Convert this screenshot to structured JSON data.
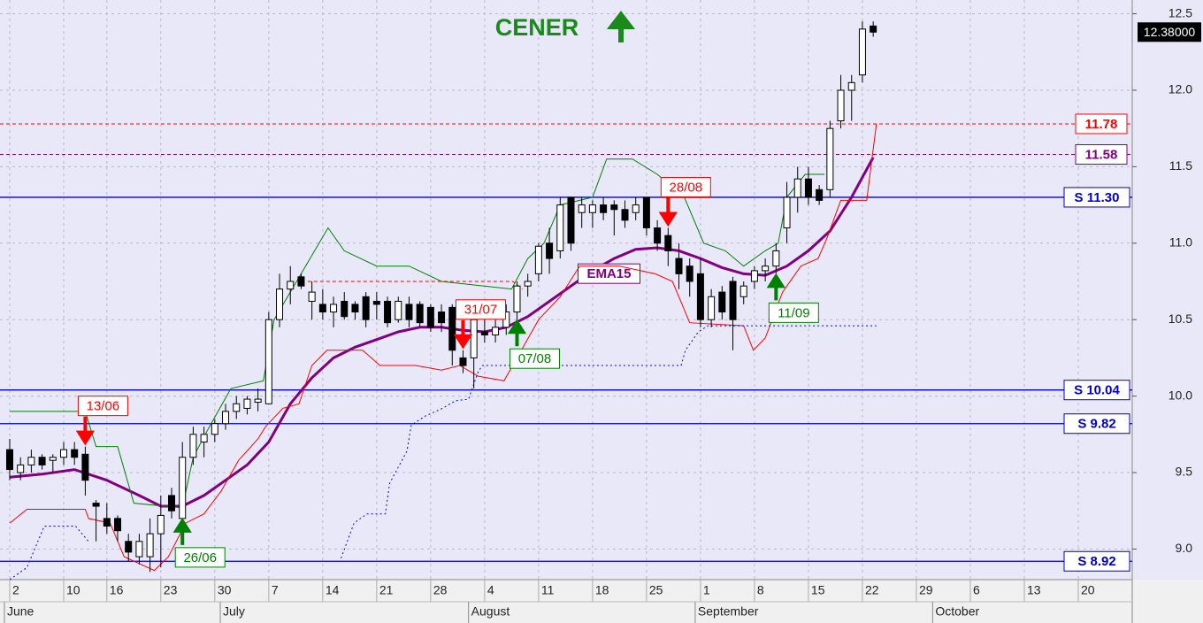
{
  "chart_data": {
    "type": "candlestick",
    "title": "CENER",
    "xlim": [
      -0.9,
      104
    ],
    "ylim": [
      8.8,
      12.59
    ],
    "yticks": [
      {
        "value": 9,
        "label": "9.0"
      },
      9.5,
      {
        "value": 10,
        "label": "10.0"
      },
      10.5,
      {
        "value": 11,
        "label": "11.0"
      },
      11.5,
      {
        "value": 12,
        "label": "12.0"
      },
      12.5
    ],
    "xticks": [
      {
        "value": 0,
        "label": "2"
      },
      {
        "value": 5,
        "label": "10"
      },
      {
        "value": 9,
        "label": "16"
      },
      {
        "value": 14,
        "label": "23"
      },
      {
        "value": 19,
        "label": "30"
      },
      {
        "value": 24,
        "label": "7"
      },
      {
        "value": 29,
        "label": "14"
      },
      {
        "value": 34,
        "label": "21"
      },
      {
        "value": 39,
        "label": "28"
      },
      {
        "value": 44,
        "label": "4"
      },
      {
        "value": 49,
        "label": "11"
      },
      {
        "value": 54,
        "label": "18"
      },
      {
        "value": 59,
        "label": "25"
      },
      {
        "value": 64,
        "label": "1"
      },
      {
        "value": 69,
        "label": "8"
      },
      {
        "value": 74,
        "label": "15"
      },
      {
        "value": 79,
        "label": "22"
      },
      {
        "value": 84,
        "label": "29"
      },
      {
        "value": 89,
        "label": "6"
      },
      {
        "value": 94,
        "label": "13"
      },
      {
        "value": 99,
        "label": "20"
      }
    ],
    "months": [
      {
        "value": 0,
        "label": "June"
      },
      {
        "value": 20,
        "label": "July"
      },
      {
        "value": 43,
        "label": "August"
      },
      {
        "value": 64,
        "label": "September"
      },
      {
        "value": 86,
        "label": "October"
      }
    ],
    "grid": true,
    "candles": {
      "open": [
        9.65,
        9.5,
        9.55,
        9.6,
        9.58,
        9.6,
        9.65,
        9.62,
        9.3,
        9.2,
        9.2,
        9.05,
        8.95,
        8.95,
        9.1,
        9.35,
        9.2,
        9.6,
        9.7,
        9.75,
        9.82,
        9.9,
        9.92,
        9.96,
        9.95,
        10.5,
        10.7,
        10.78,
        10.62,
        10.6,
        10.55,
        10.62,
        10.6,
        10.65,
        10.62,
        10.62,
        10.5,
        10.6,
        10.6,
        10.58,
        10.55,
        10.58,
        10.25,
        10.25,
        10.42,
        10.4,
        10.45,
        10.55,
        10.72,
        10.8,
        11.0,
        10.95,
        11.3,
        11.2,
        11.2,
        11.25,
        11.25,
        11.22,
        11.2,
        11.3,
        11.1,
        11.05,
        10.9,
        10.85,
        10.8,
        10.5,
        10.68,
        10.75,
        10.65,
        10.75,
        10.82,
        10.85,
        11.1,
        11.3,
        11.42,
        11.35,
        11.35,
        11.8,
        12.0,
        12.1,
        12.42
      ],
      "high": [
        9.72,
        9.6,
        9.65,
        9.62,
        9.62,
        9.7,
        9.7,
        9.67,
        9.32,
        9.3,
        9.22,
        9.1,
        9.1,
        9.2,
        9.35,
        9.4,
        9.7,
        9.8,
        9.8,
        9.85,
        9.95,
        10.0,
        10.0,
        10.05,
        10.55,
        10.8,
        10.85,
        10.8,
        10.75,
        10.7,
        10.65,
        10.68,
        10.62,
        10.68,
        10.68,
        10.65,
        10.65,
        10.65,
        10.62,
        10.6,
        10.6,
        10.6,
        10.3,
        10.55,
        10.55,
        10.5,
        10.6,
        10.75,
        10.8,
        11.0,
        11.1,
        11.3,
        11.3,
        11.3,
        11.28,
        11.3,
        11.28,
        11.28,
        11.3,
        11.3,
        11.15,
        11.1,
        11.0,
        10.9,
        10.9,
        10.7,
        10.72,
        10.78,
        10.75,
        10.85,
        10.9,
        11.0,
        11.4,
        11.5,
        11.5,
        11.38,
        11.8,
        12.1,
        12.1,
        12.45,
        12.45
      ],
      "low": [
        9.45,
        9.45,
        9.5,
        9.52,
        9.5,
        9.55,
        9.55,
        9.35,
        9.05,
        9.1,
        9.05,
        8.92,
        8.9,
        8.85,
        8.88,
        9.2,
        9.2,
        9.55,
        9.6,
        9.7,
        9.78,
        9.85,
        9.88,
        9.9,
        9.95,
        10.45,
        10.6,
        10.7,
        10.5,
        10.5,
        10.45,
        10.5,
        10.5,
        10.45,
        10.5,
        10.45,
        10.48,
        10.45,
        10.45,
        10.42,
        10.42,
        10.2,
        10.15,
        10.05,
        10.35,
        10.35,
        10.4,
        10.5,
        10.65,
        10.75,
        10.8,
        10.9,
        10.95,
        11.1,
        11.1,
        11.15,
        11.05,
        11.1,
        11.15,
        11.05,
        10.95,
        10.85,
        10.7,
        10.65,
        10.45,
        10.45,
        10.5,
        10.3,
        10.6,
        10.7,
        10.75,
        10.8,
        11.0,
        11.2,
        11.25,
        11.25,
        11.3,
        11.75,
        11.8,
        12.05,
        12.35
      ],
      "close": [
        9.52,
        9.55,
        9.6,
        9.55,
        9.6,
        9.65,
        9.6,
        9.45,
        9.28,
        9.15,
        9.12,
        8.98,
        9.05,
        9.1,
        9.22,
        9.25,
        9.6,
        9.75,
        9.75,
        9.82,
        9.9,
        9.95,
        9.98,
        9.98,
        10.5,
        10.7,
        10.75,
        10.72,
        10.68,
        10.55,
        10.6,
        10.52,
        10.55,
        10.5,
        10.6,
        10.48,
        10.62,
        10.5,
        10.48,
        10.45,
        10.48,
        10.3,
        10.2,
        10.5,
        10.4,
        10.45,
        10.55,
        10.72,
        10.75,
        10.98,
        10.9,
        11.25,
        11.0,
        11.25,
        11.25,
        11.2,
        11.22,
        11.15,
        11.25,
        11.1,
        11.0,
        10.95,
        10.8,
        10.75,
        10.5,
        10.65,
        10.55,
        10.5,
        10.72,
        10.82,
        10.85,
        10.95,
        11.3,
        11.42,
        11.3,
        11.28,
        11.75,
        12.0,
        12.05,
        12.4,
        12.38
      ]
    },
    "series": [
      {
        "name": "EMA15",
        "color": "#800080",
        "width": 3,
        "style": "solid",
        "x": [
          0,
          3,
          6,
          9,
          12,
          14,
          16,
          18,
          20,
          22,
          24,
          26,
          28,
          30,
          32,
          34,
          36,
          38,
          40,
          42,
          44,
          46,
          48,
          50,
          52,
          54,
          56,
          58,
          60,
          62,
          64,
          66,
          68,
          70,
          72,
          74,
          76,
          78,
          80
        ],
        "values": [
          9.47,
          9.49,
          9.52,
          9.45,
          9.35,
          9.28,
          9.28,
          9.35,
          9.45,
          9.55,
          9.7,
          9.95,
          10.12,
          10.25,
          10.32,
          10.37,
          10.42,
          10.45,
          10.45,
          10.43,
          10.42,
          10.45,
          10.52,
          10.62,
          10.72,
          10.82,
          10.9,
          10.96,
          10.97,
          10.95,
          10.9,
          10.84,
          10.8,
          10.79,
          10.85,
          10.95,
          11.08,
          11.3,
          11.56
        ]
      },
      {
        "color": "#008000",
        "width": 1,
        "style": "solid",
        "x": [
          0,
          7,
          8,
          10,
          11.5,
          16,
          17,
          18.5,
          20.5,
          23.5,
          24.5,
          27,
          29.5,
          31,
          34,
          37,
          40,
          46.5,
          48,
          49.5,
          51,
          54,
          55.3,
          57.7,
          60,
          62.5,
          64.3,
          66.3,
          68,
          70,
          71.2,
          72,
          73.7,
          75.5
        ],
        "values": [
          9.9,
          9.9,
          9.67,
          9.67,
          9.3,
          9.27,
          9.6,
          9.8,
          10.05,
          10.1,
          10.5,
          10.8,
          11.1,
          10.95,
          10.85,
          10.85,
          10.75,
          10.7,
          10.9,
          11.0,
          11.25,
          11.3,
          11.55,
          11.55,
          11.45,
          11.3,
          11.0,
          10.95,
          10.85,
          10.95,
          11.0,
          11.3,
          11.45,
          11.45
        ]
      },
      {
        "color": "#ff0000",
        "width": 1,
        "style": "solid",
        "x": [
          0,
          1.6,
          7,
          7.3,
          9.3,
          10.6,
          13.4,
          14.7,
          16.3,
          18,
          19.6,
          21.2,
          23,
          23.7,
          25.3,
          26.8,
          28,
          29.4,
          32.7,
          34.3,
          37.6,
          40,
          41.7,
          43.4,
          45.8,
          47.4,
          49,
          51,
          52.8,
          56.5,
          59.8,
          61.4,
          63,
          68,
          68.9,
          70,
          71.6,
          73.3,
          74.9,
          75.7,
          77,
          79.4,
          80.3
        ],
        "values": [
          9.17,
          9.26,
          9.26,
          9.2,
          9.17,
          8.95,
          8.86,
          8.95,
          9.17,
          9.23,
          9.38,
          9.58,
          9.72,
          9.8,
          9.92,
          9.95,
          10.2,
          10.3,
          10.3,
          10.2,
          10.2,
          10.17,
          10.2,
          10.13,
          10.1,
          10.3,
          10.5,
          10.65,
          10.85,
          10.85,
          10.8,
          10.75,
          10.48,
          10.46,
          10.3,
          10.38,
          10.68,
          10.85,
          10.9,
          11.03,
          11.28,
          11.28,
          11.78
        ]
      },
      {
        "color": "#0000ff",
        "width": 1,
        "style": "dotted",
        "x": [
          0,
          1.6,
          3.2,
          6.1,
          7.3,
          8,
          30.7,
          31.9,
          33.1,
          34.8,
          35.2,
          36.8,
          37.2,
          38.5,
          40.1,
          41.3,
          42.5,
          43.4,
          43.8,
          45,
          62.2,
          62.6,
          63.8,
          64.7,
          80.3
        ],
        "values": [
          8.8,
          8.88,
          9.15,
          9.15,
          9.05,
          null,
          8.94,
          9.17,
          9.23,
          9.23,
          9.43,
          9.64,
          9.81,
          9.87,
          9.92,
          9.97,
          9.98,
          10.16,
          10.2,
          10.2,
          10.2,
          10.3,
          10.42,
          10.46,
          10.46
        ]
      },
      {
        "color": "#ff0000",
        "width": 1,
        "style": "dashed",
        "x": [
          27.6,
          46.6,
          47.5
        ],
        "values": [
          10.75,
          10.75,
          10.7
        ]
      }
    ],
    "levels": {
      "values": [
        11.3,
        10.04,
        9.82,
        8.92
      ],
      "value_labels": [
        "S 11.30",
        "S 10.04",
        "S 9.82",
        "S 8.92"
      ],
      "color": "#0000cc"
    },
    "dashed_levels": {
      "values": [
        11.78,
        11.58
      ],
      "colors": [
        "#ff0000",
        "#800080"
      ]
    },
    "last": {
      "value": 12.38,
      "label": "12.38000"
    },
    "signals": [
      {
        "label": "13/06",
        "x": 7,
        "color": "#ff0000"
      },
      {
        "label": "26/06",
        "x": 16,
        "color": "#008000"
      },
      {
        "label": "31/07",
        "x": 42,
        "color": "#ff0000"
      },
      {
        "label": "07/08",
        "x": 47,
        "color": "#008000"
      },
      {
        "label": "28/08",
        "x": 61,
        "color": "#ff0000"
      },
      {
        "label": "11/09",
        "x": 71,
        "color": "#008000"
      }
    ]
  }
}
